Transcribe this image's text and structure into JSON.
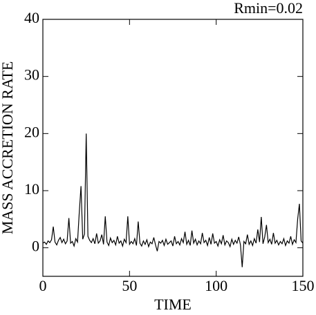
{
  "chart_data": {
    "type": "line",
    "annotation": "Rmin=0.02",
    "x_label": "TIME",
    "y_label": "MASS ACCRETION RATE",
    "xlim": [
      0,
      150
    ],
    "xticks": [
      0,
      50,
      100,
      150
    ],
    "ylim": [
      -5,
      40
    ],
    "yticks": [
      0,
      10,
      20,
      30,
      40
    ],
    "x": [
      0,
      1,
      2,
      3,
      4,
      5,
      6,
      7,
      8,
      9,
      10,
      11,
      12,
      13,
      14,
      15,
      16,
      17,
      18,
      19,
      20,
      21,
      22,
      23,
      24,
      25,
      26,
      27,
      28,
      29,
      30,
      31,
      32,
      33,
      34,
      35,
      36,
      37,
      38,
      39,
      40,
      41,
      42,
      43,
      44,
      45,
      46,
      47,
      48,
      49,
      50,
      51,
      52,
      53,
      54,
      55,
      56,
      57,
      58,
      59,
      60,
      61,
      62,
      63,
      64,
      65,
      66,
      67,
      68,
      69,
      70,
      71,
      72,
      73,
      74,
      75,
      76,
      77,
      78,
      79,
      80,
      81,
      82,
      83,
      84,
      85,
      86,
      87,
      88,
      89,
      90,
      91,
      92,
      93,
      94,
      95,
      96,
      97,
      98,
      99,
      100,
      101,
      102,
      103,
      104,
      105,
      106,
      107,
      108,
      109,
      110,
      111,
      112,
      113,
      114,
      115,
      116,
      117,
      118,
      119,
      120,
      121,
      122,
      123,
      124,
      125,
      126,
      127,
      128,
      129,
      130,
      131,
      132,
      133,
      134,
      135,
      136,
      137,
      138,
      139,
      140,
      141,
      142,
      143,
      144,
      145,
      146,
      147,
      148,
      149,
      150
    ],
    "series": [
      {
        "color": "#000000",
        "values": [
          0.8,
          1.0,
          0.6,
          1.2,
          0.9,
          1.4,
          3.7,
          1.0,
          0.5,
          1.3,
          1.8,
          0.9,
          1.5,
          0.7,
          1.2,
          5.2,
          0.8,
          1.1,
          0.3,
          1.6,
          1.0,
          6.2,
          10.8,
          1.5,
          2.4,
          20.0,
          2.0,
          1.3,
          0.9,
          1.6,
          0.7,
          2.5,
          0.8,
          1.2,
          2.3,
          0.6,
          5.5,
          1.0,
          0.4,
          1.7,
          0.9,
          1.3,
          0.5,
          2.0,
          0.8,
          1.2,
          0.3,
          1.5,
          0.9,
          5.5,
          0.6,
          1.1,
          0.7,
          1.6,
          0.4,
          4.6,
          0.8,
          0.3,
          1.2,
          0.6,
          1.4,
          0.2,
          1.0,
          0.7,
          1.8,
          0.5,
          -0.6,
          1.1,
          0.8,
          1.3,
          0.4,
          1.5,
          0.6,
          0.9,
          1.2,
          0.3,
          2.0,
          0.7,
          1.1,
          0.5,
          1.6,
          0.9,
          2.8,
          0.6,
          1.3,
          0.4,
          3.0,
          0.8,
          1.5,
          0.5,
          1.2,
          0.7,
          2.6,
          0.9,
          1.3,
          0.4,
          1.8,
          0.6,
          2.5,
          0.8,
          1.1,
          0.3,
          1.4,
          0.7,
          2.2,
          0.5,
          1.2,
          0.9,
          0.2,
          1.5,
          0.6,
          1.3,
          0.8,
          1.9,
          0.5,
          -3.4,
          1.1,
          0.7,
          2.3,
          0.6,
          1.2,
          0.4,
          1.6,
          0.8,
          3.2,
          1.0,
          5.4,
          0.7,
          1.9,
          4.0,
          0.9,
          1.5,
          0.6,
          2.6,
          0.8,
          1.3,
          0.5,
          1.1,
          0.7,
          1.6,
          0.4,
          1.2,
          0.8,
          2.0,
          0.6,
          1.4,
          0.9,
          5.0,
          7.7,
          1.2,
          0.8
        ]
      }
    ]
  }
}
